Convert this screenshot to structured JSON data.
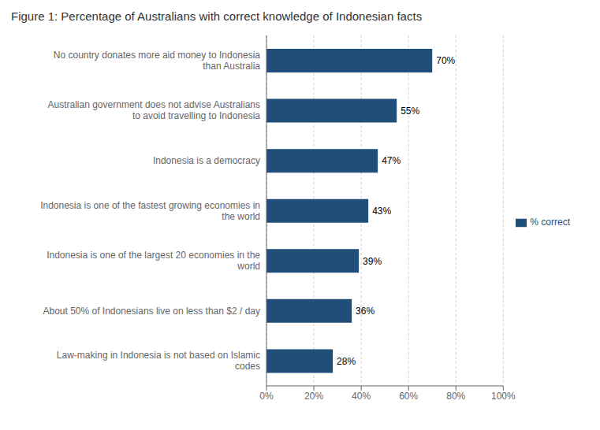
{
  "chart_data": {
    "type": "bar",
    "orientation": "horizontal",
    "title": "Figure 1: Percentage of Australians with correct knowledge of Indonesian facts",
    "categories": [
      "Law-making in Indonesia is not based on Islamic\ncodes",
      "About 50% of Indonesians live on less than $2 / day",
      "Indonesia is one of the largest 20 economies in the\nworld",
      "Indonesia is one of the fastest growing economies in\nthe world",
      "Indonesia is a democracy",
      "Australian government does not advise Australians\nto avoid travelling to Indonesia",
      "No country donates more aid money to Indonesia\nthan Australia"
    ],
    "series": [
      {
        "name": "% correct",
        "color": "#1F4E79",
        "values": [
          28,
          36,
          39,
          43,
          47,
          55,
          70
        ],
        "value_labels": [
          "28%",
          "36%",
          "39%",
          "43%",
          "47%",
          "55%",
          "70%"
        ]
      }
    ],
    "data_labels": true,
    "xlim": [
      0,
      100
    ],
    "xticks": [
      {
        "value": 0,
        "label": "0%"
      },
      {
        "value": 20,
        "label": "20%"
      },
      {
        "value": 40,
        "label": "40%"
      },
      {
        "value": 60,
        "label": "60%"
      },
      {
        "value": 80,
        "label": "80%"
      },
      {
        "value": 100,
        "label": "100%"
      }
    ],
    "grid": true,
    "legend": "right"
  }
}
